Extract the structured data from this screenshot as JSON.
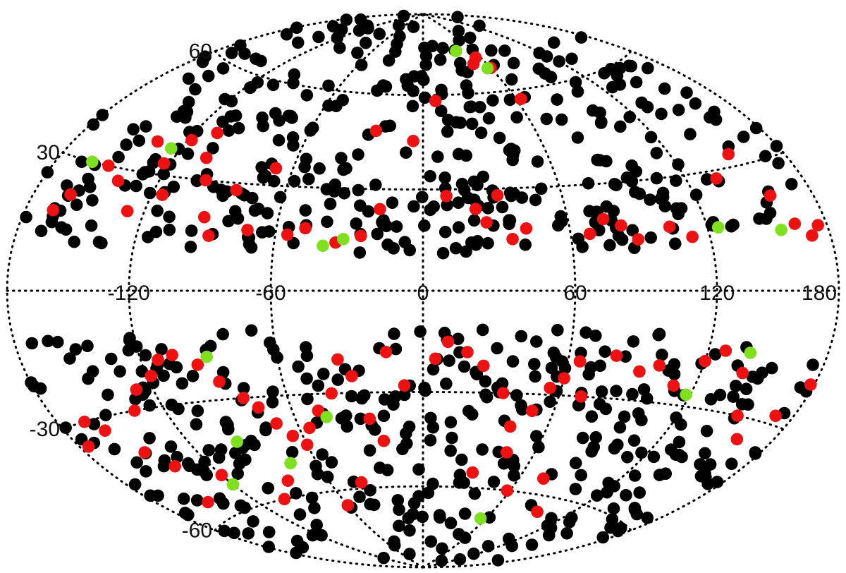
{
  "chart_data": {
    "type": "scatter",
    "projection": "aitoff-hammer (all-sky)",
    "grid": true,
    "xlim": [
      -180,
      180
    ],
    "ylim": [
      -90,
      90
    ],
    "x_ticks": [
      -120,
      -60,
      0,
      60,
      120,
      180
    ],
    "x_tick_labels": [
      "-120",
      "-60",
      "0",
      "60",
      "120",
      "180"
    ],
    "y_ticks": [
      60,
      30,
      -30,
      -60
    ],
    "y_tick_labels": [
      "60",
      "30",
      "-30",
      "-60"
    ],
    "legend": null,
    "series": [
      {
        "color": "#000000",
        "marker": "filled-circle",
        "note_count": "dense field of several hundred points; sky avoids |b|<~12",
        "generator": {
          "count": 780,
          "seed": 7,
          "min_abs_lat": 11
        }
      },
      {
        "color": "#ee1111",
        "marker": "filled-circle",
        "points": [
          [
            -165,
            18
          ],
          [
            -160,
            22
          ],
          [
            -150,
            30
          ],
          [
            -140,
            27
          ],
          [
            -135,
            38
          ],
          [
            -128,
            20
          ],
          [
            -123,
            33
          ],
          [
            -118,
            40
          ],
          [
            -115,
            25
          ],
          [
            -108,
            43
          ],
          [
            -104,
            36
          ],
          [
            -98,
            30
          ],
          [
            -92,
            20
          ],
          [
            -88,
            15
          ],
          [
            -82,
            28
          ],
          [
            -72,
            17
          ],
          [
            -68,
            35
          ],
          [
            -55,
            16
          ],
          [
            -48,
            18
          ],
          [
            -35,
            14
          ],
          [
            -25,
            16
          ],
          [
            -18,
            24
          ],
          [
            -5,
            45
          ],
          [
            10,
            28
          ],
          [
            22,
            24
          ],
          [
            26,
            20
          ],
          [
            32,
            28
          ],
          [
            36,
            15
          ],
          [
            42,
            18
          ],
          [
            48,
            70
          ],
          [
            55,
            72
          ],
          [
            60,
            68
          ],
          [
            63,
            57
          ],
          [
            68,
            16
          ],
          [
            75,
            20
          ],
          [
            82,
            18
          ],
          [
            88,
            14
          ],
          [
            103,
            17
          ],
          [
            112,
            14
          ],
          [
            135,
            28
          ],
          [
            150,
            33
          ],
          [
            157,
            22
          ],
          [
            163,
            15
          ],
          [
            170,
            12
          ],
          [
            175,
            14
          ],
          [
            8,
            58
          ],
          [
            -25,
            48
          ],
          [
            -175,
            -35
          ],
          [
            -165,
            -30
          ],
          [
            -158,
            -33
          ],
          [
            -148,
            -40
          ],
          [
            -140,
            -45
          ],
          [
            -135,
            -30
          ],
          [
            -128,
            -25
          ],
          [
            -118,
            -22
          ],
          [
            -112,
            -18
          ],
          [
            -105,
            -17
          ],
          [
            -95,
            -20
          ],
          [
            -88,
            -25
          ],
          [
            -80,
            -30
          ],
          [
            -75,
            -33
          ],
          [
            -70,
            -38
          ],
          [
            -65,
            -42
          ],
          [
            -60,
            -45
          ],
          [
            -55,
            -40
          ],
          [
            -48,
            -35
          ],
          [
            -40,
            -30
          ],
          [
            -35,
            -20
          ],
          [
            -30,
            -25
          ],
          [
            -25,
            -38
          ],
          [
            -20,
            -45
          ],
          [
            -15,
            -18
          ],
          [
            -8,
            -28
          ],
          [
            5,
            -20
          ],
          [
            10,
            -15
          ],
          [
            18,
            -18
          ],
          [
            25,
            -22
          ],
          [
            35,
            -30
          ],
          [
            42,
            -40
          ],
          [
            45,
            -48
          ],
          [
            50,
            -35
          ],
          [
            55,
            -28
          ],
          [
            60,
            -25
          ],
          [
            65,
            -20
          ],
          [
            70,
            -30
          ],
          [
            80,
            -18
          ],
          [
            92,
            -22
          ],
          [
            100,
            -20
          ],
          [
            110,
            -25
          ],
          [
            120,
            -18
          ],
          [
            128,
            -15
          ],
          [
            140,
            -20
          ],
          [
            150,
            -30
          ],
          [
            160,
            -35
          ],
          [
            170,
            -28
          ],
          [
            178,
            -20
          ],
          [
            -150,
            -55
          ],
          [
            -120,
            -50
          ],
          [
            -100,
            -60
          ],
          [
            -85,
            -55
          ],
          [
            -60,
            -65
          ],
          [
            -40,
            -58
          ],
          [
            30,
            -55
          ],
          [
            58,
            -60
          ],
          [
            75,
            -55
          ],
          [
            95,
            -65
          ]
        ]
      },
      {
        "color": "#7fe020",
        "marker": "filled-circle",
        "points": [
          [
            -160,
            30
          ],
          [
            -125,
            37
          ],
          [
            -40,
            13
          ],
          [
            -32,
            15
          ],
          [
            40,
            75
          ],
          [
            57,
            68
          ],
          [
            125,
            16
          ],
          [
            155,
            14
          ],
          [
            -90,
            -18
          ],
          [
            -95,
            -42
          ],
          [
            -75,
            -50
          ],
          [
            -45,
            -37
          ],
          [
            140,
            -15
          ],
          [
            118,
            -27
          ],
          [
            55,
            -70
          ],
          [
            -120,
            -53
          ]
        ]
      }
    ]
  }
}
